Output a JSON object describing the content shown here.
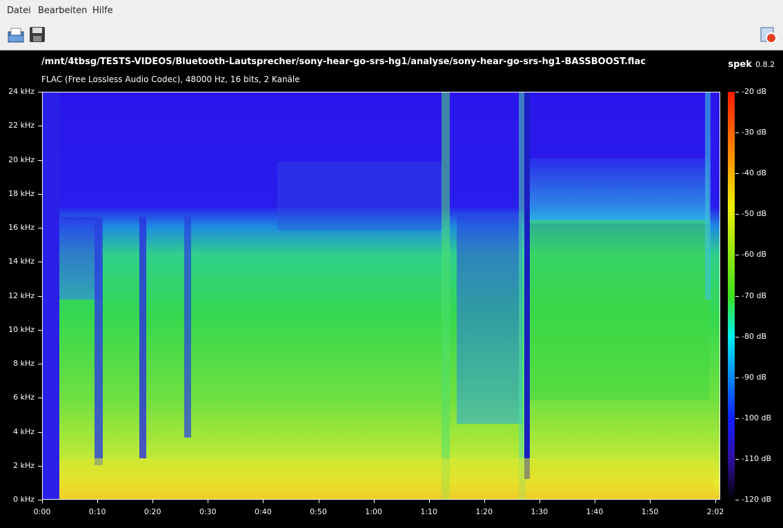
{
  "menu": [
    "Datei",
    "Bearbeiten",
    "Hilfe"
  ],
  "header": {
    "file_path": "/mnt/4tbsg/TESTS-VIDEOS/Bluetooth-Lautsprecher/sony-hear-go-srs-hg1/analyse/sony-hear-go-srs-hg1-BASSBOOST.flac",
    "info": "FLAC (Free Lossless Audio Codec), 48000 Hz, 16 bits, 2 Kanäle",
    "app_name": "spek",
    "app_version": "0.8.2"
  },
  "frequency_labels": [
    "24 kHz",
    "22 kHz",
    "20 kHz",
    "18 kHz",
    "16 kHz",
    "14 kHz",
    "12 kHz",
    "10 kHz",
    "8 kHz",
    "6 kHz",
    "4 kHz",
    "2 kHz",
    "0 kHz"
  ],
  "time_labels": [
    "0:00",
    "0:10",
    "0:20",
    "0:30",
    "0:40",
    "0:50",
    "1:00",
    "1:10",
    "1:20",
    "1:30",
    "1:40",
    "1:50",
    "2:02"
  ],
  "level_labels": [
    "-20 dB",
    "-30 dB",
    "-40 dB",
    "-50 dB",
    "-60 dB",
    "-70 dB",
    "-80 dB",
    "-90 dB",
    "-100 dB",
    "-110 dB",
    "-120 dB"
  ]
}
